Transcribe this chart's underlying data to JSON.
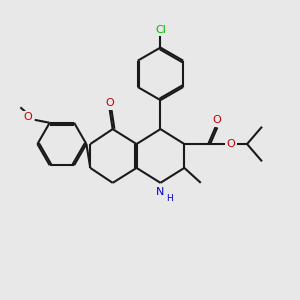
{
  "bg_color": "#e8e8e8",
  "bond_color": "#1a1a1a",
  "bond_width": 1.5,
  "dbo": 0.06,
  "atoms": {
    "Cl": {
      "color": "#00bb00"
    },
    "O": {
      "color": "#cc0000"
    },
    "N": {
      "color": "#0000cc"
    },
    "C": {
      "color": "#1a1a1a"
    }
  },
  "xlim": [
    0,
    10
  ],
  "ylim": [
    0,
    10
  ]
}
